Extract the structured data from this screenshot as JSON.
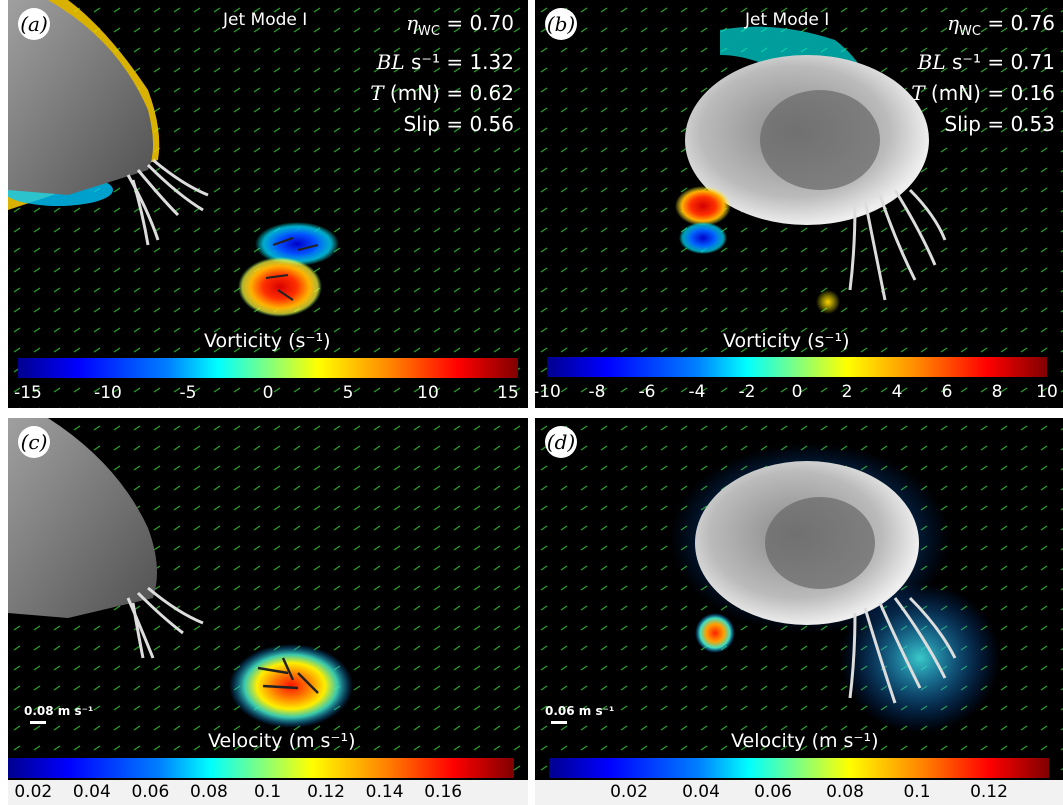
{
  "panels": {
    "a": {
      "label": "(a)",
      "mode": "Jet Mode I",
      "stats": {
        "eta_label": "η",
        "eta_sub": "WC",
        "eta_value": "= 0.70",
        "bl_label": "BL",
        "bl_unit": " s⁻¹",
        "bl_value": "= 1.32",
        "t_label": "T",
        "t_unit": " (mN)",
        "t_value": "= 0.62",
        "slip": "Slip = 0.56"
      },
      "colorbar_label": "Vorticity (s⁻¹)",
      "ticks": [
        "-15",
        "-10",
        "-5",
        "0",
        "5",
        "10",
        "15"
      ]
    },
    "b": {
      "label": "(b)",
      "mode": "Jet Mode I",
      "stats": {
        "eta_label": "η",
        "eta_sub": "WC",
        "eta_value": "= 0.76",
        "bl_label": "BL",
        "bl_unit": " s⁻¹",
        "bl_value": "= 0.71",
        "t_label": "T",
        "t_unit": " (mN)",
        "t_value": "= 0.16",
        "slip": "Slip = 0.53"
      },
      "colorbar_label": "Vorticity (s⁻¹)",
      "ticks": [
        "-10",
        "-8",
        "-6",
        "-4",
        "-2",
        "0",
        "2",
        "4",
        "6",
        "8",
        "10"
      ]
    },
    "c": {
      "label": "(c)",
      "scale": "0.08 m s⁻¹",
      "colorbar_label": "Velocity (m s⁻¹)",
      "ticks": [
        "0.02",
        "0.04",
        "0.06",
        "0.08",
        "0.1",
        "0.12",
        "0.14",
        "0.16"
      ]
    },
    "d": {
      "label": "(d)",
      "scale": "0.06 m s⁻¹",
      "colorbar_label": "Velocity (m s⁻¹)",
      "ticks": [
        "0.02",
        "0.04",
        "0.06",
        "0.08",
        "0.1",
        "0.12"
      ]
    }
  },
  "colors": {
    "background": "#000000",
    "vector_green": "#33cc33",
    "vector_dark": "#222222",
    "text": "#ffffff"
  }
}
